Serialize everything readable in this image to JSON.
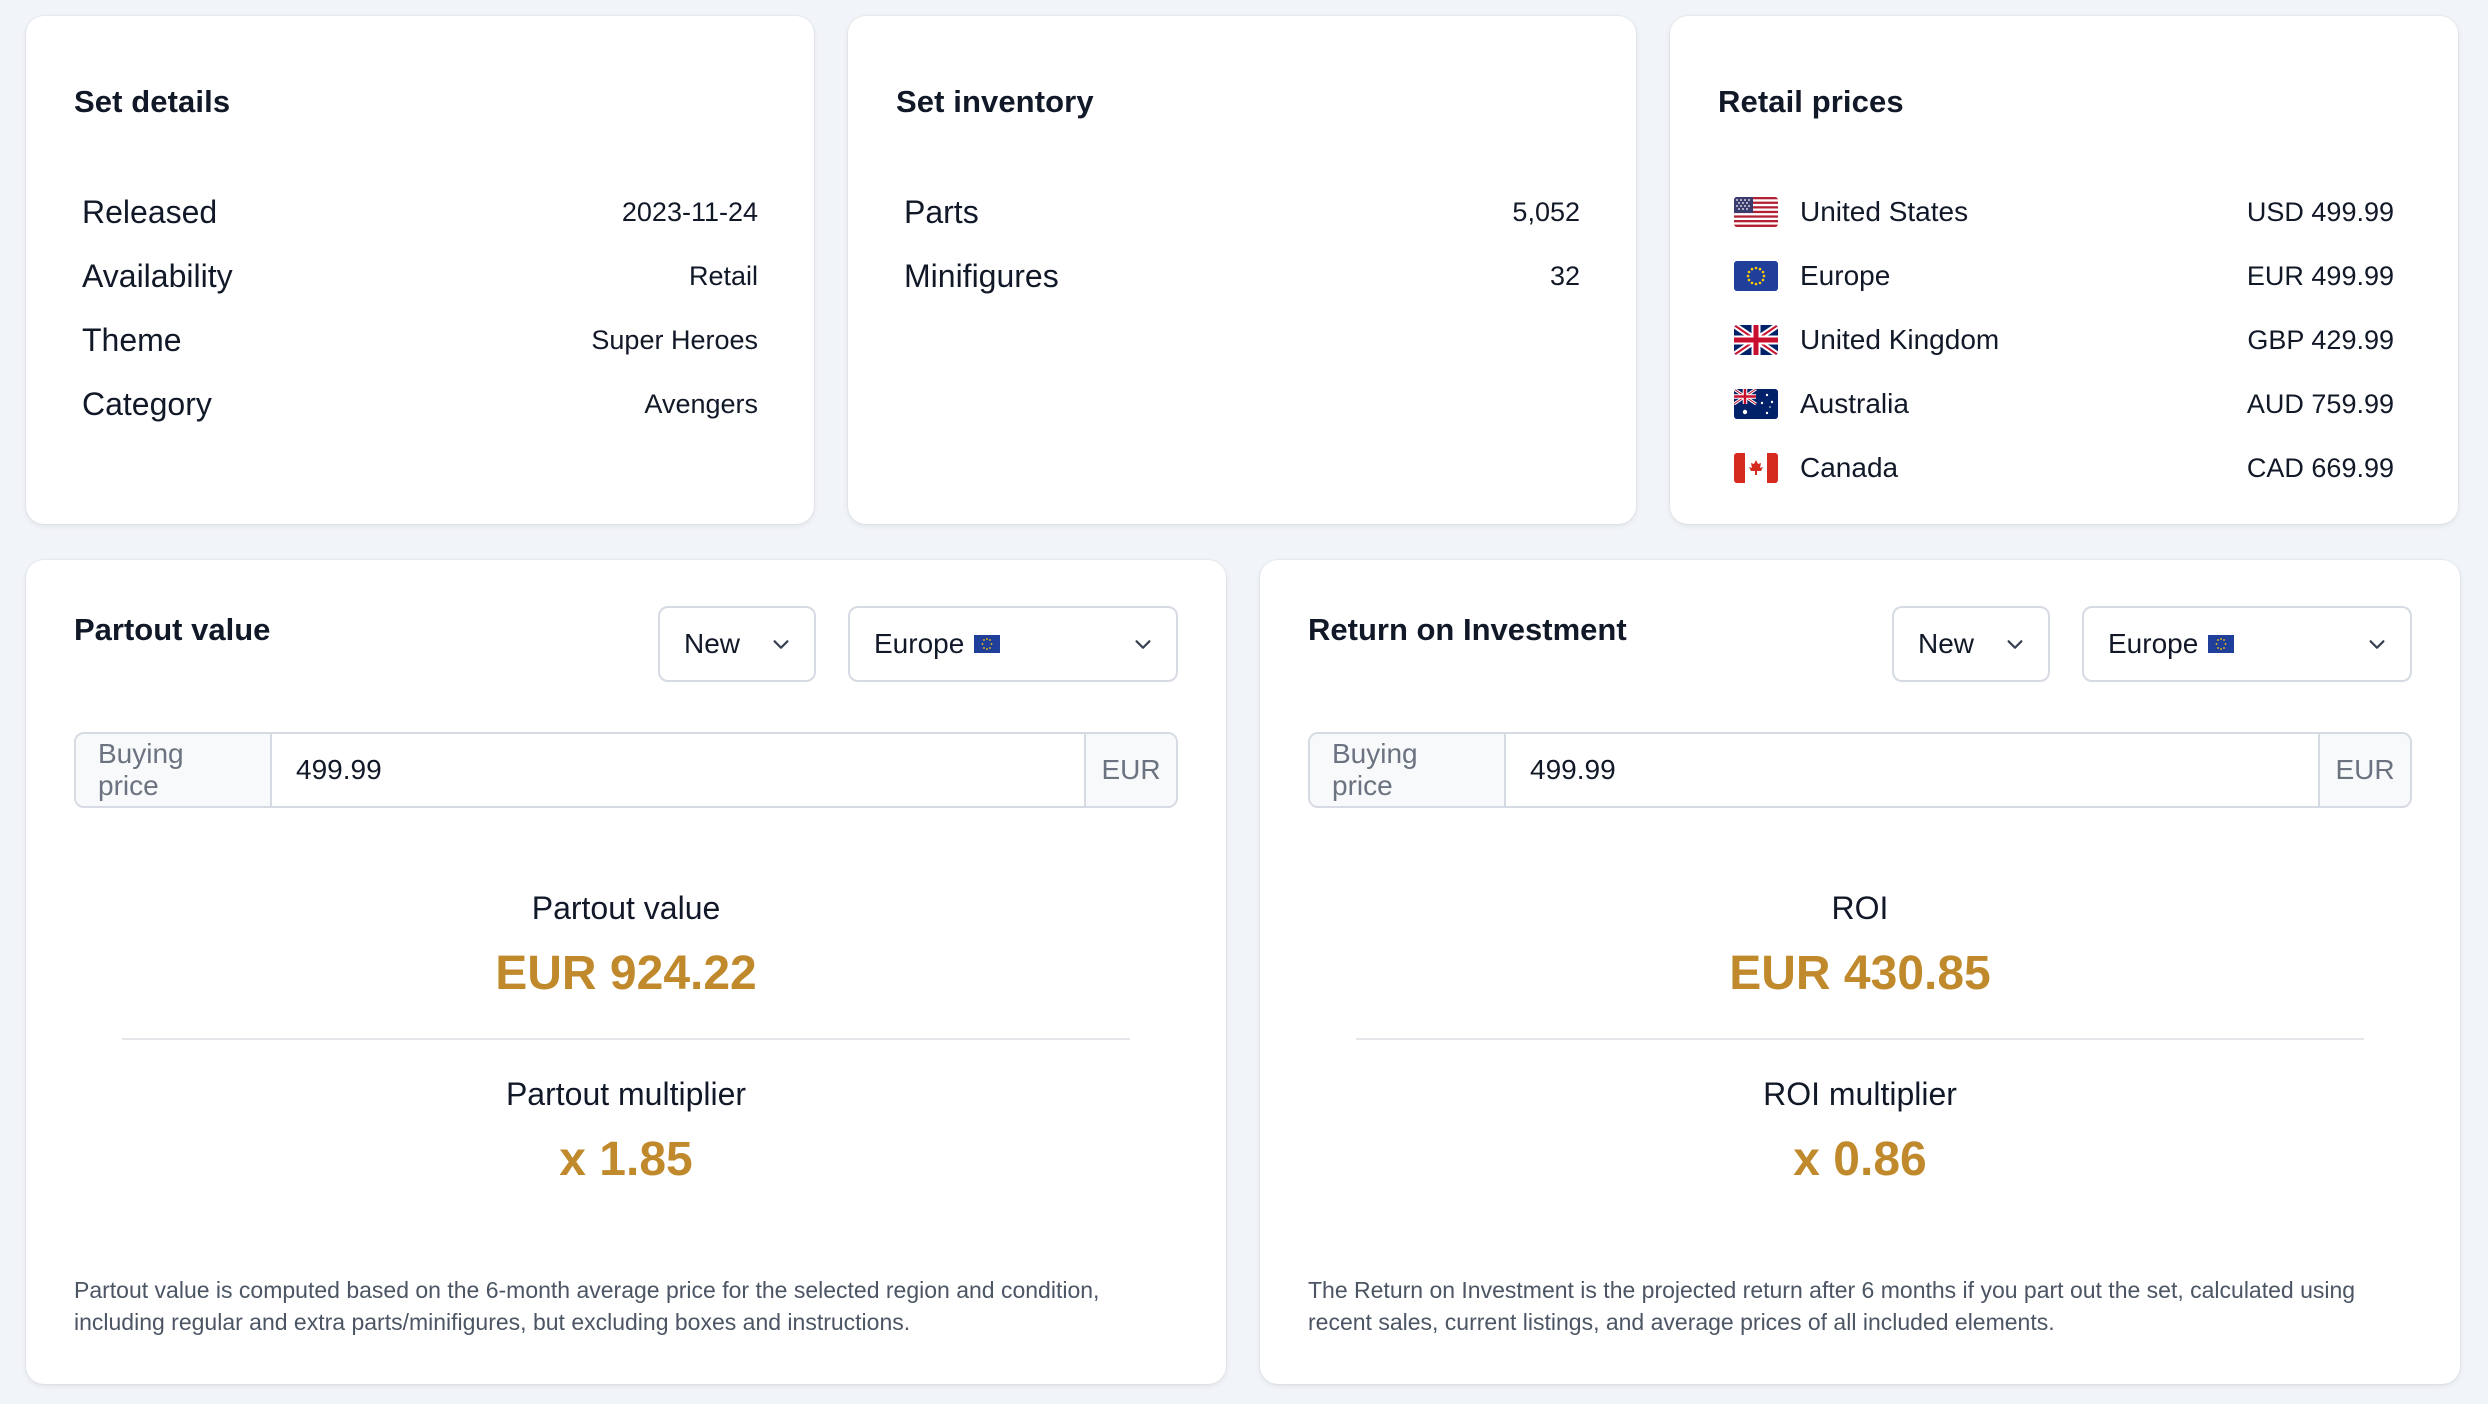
{
  "set_details": {
    "title": "Set details",
    "rows": [
      {
        "key": "Released",
        "value": "2023-11-24"
      },
      {
        "key": "Availability",
        "value": "Retail"
      },
      {
        "key": "Theme",
        "value": "Super Heroes"
      },
      {
        "key": "Category",
        "value": "Avengers"
      }
    ]
  },
  "set_inventory": {
    "title": "Set inventory",
    "rows": [
      {
        "key": "Parts",
        "value": "5,052"
      },
      {
        "key": "Minifigures",
        "value": "32"
      }
    ]
  },
  "retail_prices": {
    "title": "Retail prices",
    "rows": [
      {
        "flag": "us-flag-icon",
        "country": "United States",
        "price": "USD 499.99"
      },
      {
        "flag": "eu-flag-icon",
        "country": "Europe",
        "price": "EUR 499.99"
      },
      {
        "flag": "uk-flag-icon",
        "country": "United Kingdom",
        "price": "GBP 429.99"
      },
      {
        "flag": "au-flag-icon",
        "country": "Australia",
        "price": "AUD 759.99"
      },
      {
        "flag": "ca-flag-icon",
        "country": "Canada",
        "price": "CAD 669.99"
      }
    ]
  },
  "partout": {
    "title": "Partout value",
    "condition": "New",
    "region": "Europe",
    "buying_price_label": "Buying price",
    "buying_price": "499.99",
    "currency": "EUR",
    "value_label": "Partout value",
    "value": "EUR 924.22",
    "multiplier_label": "Partout multiplier",
    "multiplier": "x 1.85",
    "footnote": "Partout value is computed based on the 6-month average price for the selected region and condition, including regular and extra parts/minifigures, but excluding boxes and instructions."
  },
  "roi": {
    "title": "Return on Investment",
    "condition": "New",
    "region": "Europe",
    "buying_price_label": "Buying price",
    "buying_price": "499.99",
    "currency": "EUR",
    "value_label": "ROI",
    "value": "EUR 430.85",
    "multiplier_label": "ROI multiplier",
    "multiplier": "x 0.86",
    "footnote": "The Return on Investment is the projected return after 6 months if you part out the set, calculated using recent sales, current listings, and average prices of all included elements."
  },
  "colors": {
    "accent_gold": "#c08a2c",
    "background": "#f1f4f8",
    "card": "#ffffff"
  }
}
